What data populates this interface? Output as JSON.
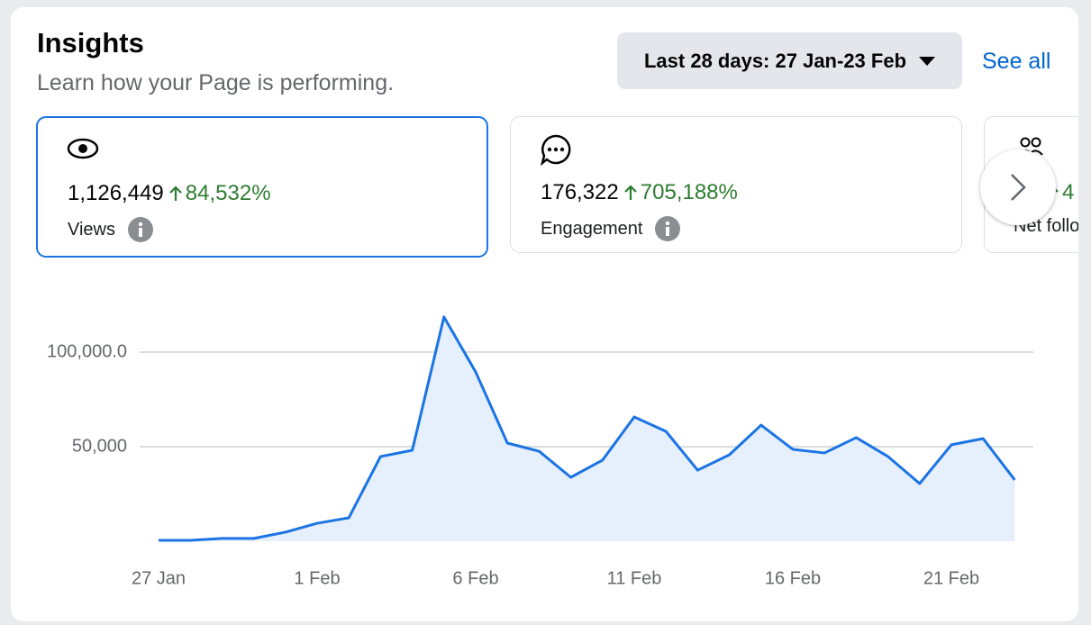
{
  "header": {
    "title": "Insights",
    "subtitle": "Learn how your Page is performing.",
    "date_range": "Last 28 days: 27 Jan-23 Feb",
    "see_all": "See all"
  },
  "cards": [
    {
      "value": "1,126,449",
      "change": "84,532%",
      "label": "Views"
    },
    {
      "value": "176,322",
      "change": "705,188%",
      "label": "Engagement"
    },
    {
      "value": "",
      "change": "4",
      "label": "Net follo"
    }
  ],
  "chart_data": {
    "type": "area",
    "categories": [
      "27 Jan",
      null,
      null,
      null,
      null,
      "1 Feb",
      null,
      null,
      null,
      null,
      "6 Feb",
      null,
      null,
      null,
      null,
      "11 Feb",
      null,
      null,
      null,
      null,
      "16 Feb",
      null,
      null,
      null,
      null,
      "21 Feb",
      null,
      null
    ],
    "values": [
      500,
      500,
      1500,
      1500,
      4800,
      9500,
      12400,
      44800,
      48100,
      118600,
      89500,
      51900,
      47600,
      33800,
      42900,
      65700,
      58100,
      37600,
      45700,
      61400,
      48600,
      46700,
      54800,
      44800,
      30500,
      51000,
      54300,
      32400
    ],
    "color": "#1b74e4",
    "fill": "#e6effc",
    "ylim": [
      0,
      125000
    ],
    "yticks": [
      {
        "value": 50000,
        "label": "50,000"
      },
      {
        "value": 100000,
        "label": "100,000.0"
      }
    ],
    "grid": true
  }
}
